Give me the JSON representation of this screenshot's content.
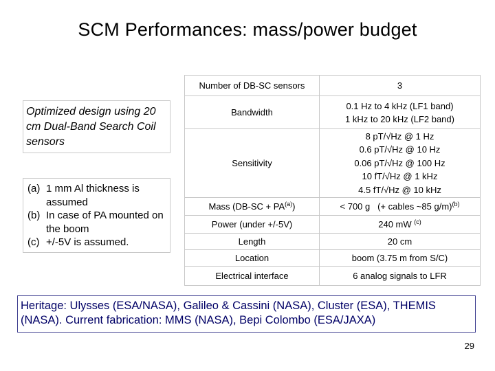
{
  "slide": {
    "title": "SCM Performances: mass/power budget",
    "note": "Optimized design using 20 cm Dual-Band Search Coil sensors",
    "footnotes": [
      {
        "marker": "(a)",
        "text": "1 mm Al thickness is assumed"
      },
      {
        "marker": "(b)",
        "text": "In case of PA mounted on the boom"
      },
      {
        "marker": "(c)",
        "text": "+/-5V is assumed."
      }
    ],
    "heritage": "Heritage: Ulysses (ESA/NASA), Galileo & Cassini (NASA), Cluster (ESA), THEMIS (NASA). Current fabrication: MMS (NASA), Bepi Colombo (ESA/JAXA)",
    "page_number": "29"
  },
  "table": {
    "rows": [
      {
        "label": "Number of DB-SC sensors",
        "value": "3"
      },
      {
        "label": "Bandwidth",
        "value_lines": [
          "0.1 Hz to 4 kHz (LF1 band)",
          "1 kHz to 20 kHz (LF2 band)"
        ]
      },
      {
        "label": "Sensitivity",
        "value_lines": [
          "8 pT/√Hz @ 1 Hz",
          "0.6 pT/√Hz @ 10 Hz",
          "0.06 pT/√Hz @ 100 Hz",
          "10 fT/√Hz @ 1 kHz",
          "4.5 fT/√Hz @ 10 kHz"
        ]
      },
      {
        "label": "Mass (DB-SC + PA",
        "label_sup": "(a)",
        "label_after": ")",
        "value": "< 700 g   (+ cables ~85 g/m)",
        "value_sup": "(b)"
      },
      {
        "label": "Power (under +/-5V)",
        "value": "240 mW",
        "value_sup": "(c)"
      },
      {
        "label": "Length",
        "value": "20 cm"
      },
      {
        "label": "Location",
        "value": "boom (3.75 m from S/C)"
      },
      {
        "label": "Electrical interface",
        "value": "6 analog signals to LFR"
      }
    ]
  }
}
